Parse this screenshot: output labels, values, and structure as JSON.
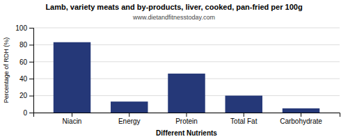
{
  "chart_data": {
    "type": "bar",
    "title": "Lamb, variety meats and by-products, liver, cooked, pan-fried per 100g",
    "subtitle": "www.dietandfitnesstoday.com",
    "categories": [
      "Niacin",
      "Energy",
      "Protein",
      "Total Fat",
      "Carbohydrate"
    ],
    "values": [
      83,
      13,
      46,
      20,
      5
    ],
    "color": "#253878",
    "xlabel": "Different Nutrients",
    "ylabel": "Percentage of RDH (%)",
    "ylim": [
      0,
      100
    ],
    "yticks": [
      0,
      20,
      40,
      60,
      80,
      100
    ],
    "grid": true
  }
}
